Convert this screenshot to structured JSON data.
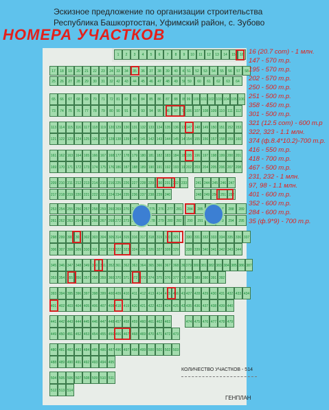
{
  "header": {
    "line1": "Эскизное предложение по организации строительства",
    "line2": "Республика Башкортостан, Уфимский район, с. Зубово",
    "title": "НОМЕРА УЧАСТКОВ"
  },
  "legend": [
    "16 (20.7 сот) - 1 млн.",
    "147 - 570 т.р.",
    "195 - 570 т.р.",
    "202 - 570 т.р.",
    "250 - 500 т.р.",
    "251 - 500 т.р.",
    "358 - 450 т.р.",
    "301 - 500 т.р.",
    "321 (12.5 сот) - 600 т.р",
    "322, 323 - 1.1 млн.",
    "374 (ф.8.4*10.2)-700 т.р.",
    "416 - 550 т.р.",
    "418 - 700 т.р.",
    "467 - 500 т.р.",
    "231, 232 - 1 млн.",
    "97, 98 - 1.1 млн.",
    "401 - 600 т.р.",
    "352 - 600 т.р.",
    "284 - 600 т.р.",
    "35 (ф.9*9) - 700 т.р."
  ],
  "footer": {
    "count": "КОЛИЧЕСТВО УЧАСТКОВ - 514",
    "genplan": "ГЕНПЛАН"
  },
  "plots": {
    "top_row": [
      "1",
      "2",
      "3",
      "4",
      "5",
      "6",
      "7",
      "8",
      "9",
      "10",
      "11",
      "12",
      "13",
      "14",
      "15",
      "16"
    ],
    "b1a": [
      "17",
      "18",
      "19",
      "20",
      "21",
      "22",
      "23",
      "24"
    ],
    "b1b": [
      "25",
      "26",
      "27",
      "28",
      "29",
      "30",
      "31",
      "32"
    ],
    "b2a": [
      "33",
      "34",
      "35",
      "36",
      "37",
      "38",
      "39",
      "40",
      "41"
    ],
    "b2b": [
      "42",
      "43",
      "44",
      "45",
      "46",
      "47",
      "48",
      "49",
      "50"
    ],
    "b3a": [
      "51",
      "52",
      "53",
      "54",
      "55",
      "56",
      "57",
      "58"
    ],
    "b3b": [
      "59",
      "60",
      "61",
      "62",
      "63",
      "64"
    ],
    "c1a": [
      "65",
      "66",
      "67",
      "68",
      "69",
      "70",
      "71",
      "72"
    ],
    "c1b": [
      "73",
      "74",
      "75",
      "76",
      "77",
      "78",
      "79",
      "80"
    ],
    "c2a": [
      "81",
      "82",
      "83",
      "84",
      "85",
      "86",
      "87",
      "88",
      "89"
    ],
    "c2b": [
      "90",
      "91",
      "92",
      "93",
      "94",
      "95",
      "96",
      "97",
      "98"
    ],
    "c3a": [
      "99",
      "100",
      "101",
      "102",
      "103",
      "104",
      "105",
      "106"
    ],
    "c3b": [
      "106",
      "107",
      "108",
      "109",
      "110",
      "111",
      "112"
    ],
    "d1a": [
      "113",
      "114",
      "115",
      "116",
      "117",
      "118",
      "119",
      "120"
    ],
    "d1b": [
      "121",
      "122",
      "123",
      "124",
      "125",
      "126",
      "127",
      "128"
    ],
    "d2a": [
      "129",
      "130",
      "131",
      "132",
      "133",
      "134",
      "135",
      "136",
      "137"
    ],
    "d2b": [
      "138",
      "139",
      "140",
      "141",
      "142",
      "143",
      "144",
      "145",
      "146"
    ],
    "d3a": [
      "147",
      "148",
      "149",
      "150",
      "151",
      "152",
      "153"
    ],
    "d3b": [
      "154",
      "155",
      "156",
      "157",
      "158",
      "159",
      "160"
    ],
    "e1a": [
      "161",
      "162",
      "163",
      "164",
      "165",
      "166",
      "167",
      "168"
    ],
    "e1b": [
      "169",
      "170",
      "171",
      "172",
      "173",
      "174",
      "175",
      "176"
    ],
    "e2a": [
      "177",
      "178",
      "179",
      "180",
      "181",
      "182",
      "183",
      "184",
      "185"
    ],
    "e2b": [
      "186",
      "187",
      "188",
      "189",
      "190",
      "191",
      "192",
      "193",
      "194"
    ],
    "e3a": [
      "195",
      "196",
      "197",
      "198",
      "199",
      "200",
      "201"
    ],
    "e3b": [
      "202",
      "203",
      "204",
      "205",
      "206",
      "207",
      "208"
    ],
    "f1a": [
      "209",
      "210",
      "211",
      "212",
      "213",
      "214",
      "215",
      "216"
    ],
    "f1b": [
      "217",
      "218",
      "219",
      "220",
      "221",
      "222",
      "223",
      "224"
    ],
    "f2a": [
      "225",
      "226",
      "227",
      "228",
      "229",
      "230",
      "231",
      "232",
      "233"
    ],
    "f2b": [
      "234",
      "235",
      "236",
      "237",
      "238",
      "239",
      "240"
    ],
    "f3a": [
      "241",
      "244",
      "245",
      "246",
      "247"
    ],
    "f3b": [
      "248",
      "249",
      "250",
      "251",
      "252"
    ],
    "g1a": [
      "253",
      "254",
      "255",
      "256",
      "257",
      "258",
      "259",
      "260"
    ],
    "g1b": [
      "261",
      "262",
      "263",
      "264",
      "265",
      "266",
      "267",
      "268"
    ],
    "g2a": [
      "269",
      "270",
      "271"
    ],
    "g2b": [
      "272",
      "273",
      "274"
    ],
    "g2c": [
      "275",
      "276",
      "277",
      "281"
    ],
    "g2d": [
      "278",
      "279",
      "280",
      "282",
      "283"
    ],
    "g3a": [
      "284",
      "285",
      "286",
      "287",
      "288",
      "289"
    ],
    "g3b": [
      "290",
      "291",
      "292",
      "293",
      "294",
      "295"
    ],
    "h1a": [
      "298",
      "299",
      "300",
      "301",
      "302",
      "303",
      "304",
      "305"
    ],
    "h1b": [
      "306",
      "307",
      "308",
      "309",
      "310",
      "311",
      "312",
      "313"
    ],
    "h2a": [
      "314",
      "315",
      "316",
      "317",
      "318",
      "319",
      "320",
      "321"
    ],
    "h2b": [
      "322",
      "323",
      "324",
      "325",
      "326",
      "327",
      "328",
      "329"
    ],
    "h3a": [
      "330",
      "331",
      "332",
      "333",
      "334",
      "335",
      "336",
      "337"
    ],
    "h3b": [
      "338",
      "339",
      "340",
      "341",
      "342",
      "343",
      "344"
    ],
    "i1a": [
      "345",
      "346",
      "347",
      "348",
      "349",
      "350",
      "351",
      "352"
    ],
    "i1b": [
      "353",
      "354",
      "355",
      "356",
      "357",
      "358",
      "359",
      "360"
    ],
    "i2a": [
      "361",
      "362",
      "363",
      "364",
      "365",
      "366",
      "367",
      "368",
      "369"
    ],
    "i2b": [
      "370",
      "371",
      "372",
      "373",
      "374",
      "375",
      "376",
      "377",
      "378"
    ],
    "i3a": [
      "379",
      "380",
      "381",
      "382",
      "383",
      "384",
      "385",
      "386",
      "387"
    ],
    "i3b": [
      "388",
      "389",
      "390",
      "391",
      "392"
    ],
    "j1a": [
      "393",
      "394",
      "395",
      "396",
      "397",
      "398",
      "399",
      "400"
    ],
    "j1b": [
      "401",
      "402",
      "403",
      "404",
      "405",
      "406",
      "407",
      "408"
    ],
    "j2a": [
      "409",
      "410",
      "411",
      "412",
      "413",
      "414",
      "415",
      "416",
      "417"
    ],
    "j2b": [
      "418",
      "419",
      "420",
      "421",
      "422",
      "423",
      "424",
      "425",
      "426"
    ],
    "j3a": [
      "427",
      "428",
      "429",
      "430",
      "431",
      "432",
      "433",
      "434"
    ],
    "j3b": [
      "435",
      "436",
      "437",
      "438",
      "439",
      "440"
    ],
    "k1a": [
      "441",
      "442",
      "443",
      "444",
      "445",
      "446",
      "447",
      "448"
    ],
    "k1b": [
      "449",
      "450",
      "451",
      "452",
      "453",
      "454",
      "455",
      "456"
    ],
    "k2a": [
      "457",
      "458",
      "459",
      "460",
      "461",
      "462",
      "463"
    ],
    "k2b": [
      "466",
      "467",
      "468",
      "469",
      "470",
      "471",
      "472",
      "473"
    ],
    "k3": [
      "474",
      "475",
      "476",
      "477",
      "478",
      "479"
    ],
    "l1a": [
      "480",
      "481",
      "482",
      "483",
      "484",
      "485",
      "486",
      "487"
    ],
    "l1b": [
      "488",
      "489",
      "490",
      "491",
      "492",
      "493",
      "494",
      "495"
    ],
    "l2": [
      "496",
      "497",
      "498",
      "499",
      "500",
      "501",
      "502",
      "503"
    ],
    "m1a": [
      "504",
      "505",
      "506",
      "507",
      "508",
      "509",
      "510",
      "511"
    ],
    "m1b": [
      "512",
      "513",
      "514"
    ]
  }
}
